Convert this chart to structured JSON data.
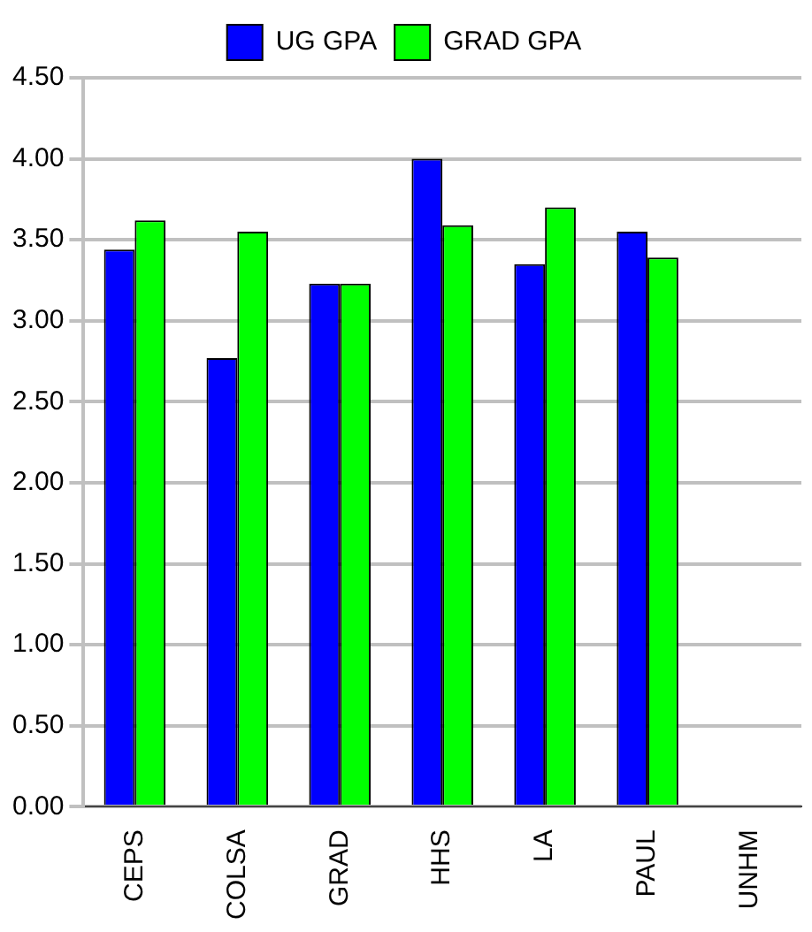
{
  "chart_data": {
    "type": "bar",
    "categories": [
      "CEPS",
      "COLSA",
      "GRAD",
      "HHS",
      "LA",
      "PAUL",
      "UNHM"
    ],
    "series": [
      {
        "name": "UG GPA",
        "color": "#0000ff",
        "values": [
          3.44,
          2.77,
          3.23,
          4.0,
          3.35,
          3.55,
          null
        ]
      },
      {
        "name": "GRAD GPA",
        "color": "#00ff00",
        "values": [
          3.62,
          3.55,
          3.23,
          3.59,
          3.7,
          3.39,
          null
        ]
      }
    ],
    "ylim": [
      0,
      4.5
    ],
    "yticks": [
      {
        "value": 0,
        "label": "0.00"
      },
      {
        "value": 0.5,
        "label": "0.50"
      },
      {
        "value": 1,
        "label": "1.00"
      },
      {
        "value": 1.5,
        "label": "1.50"
      },
      {
        "value": 2,
        "label": "2.00"
      },
      {
        "value": 2.5,
        "label": "2.50"
      },
      {
        "value": 3,
        "label": "3.00"
      },
      {
        "value": 3.5,
        "label": "3.50"
      },
      {
        "value": 4,
        "label": "4.00"
      },
      {
        "value": 4.5,
        "label": "4.50"
      }
    ],
    "grid": "y",
    "legend": "top"
  }
}
